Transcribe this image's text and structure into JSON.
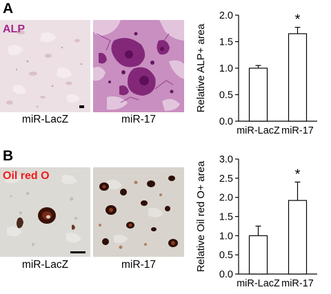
{
  "panels": [
    {
      "letter": "A",
      "stain_label": "ALP",
      "stain_color": "#a3278c",
      "image_captions": [
        "miR-LacZ",
        "miR-17"
      ],
      "chart_data": {
        "type": "bar",
        "categories": [
          "miR-LacZ",
          "miR-17"
        ],
        "values": [
          1.0,
          1.65
        ],
        "errors": [
          0.05,
          0.12
        ],
        "significance": [
          "",
          "*"
        ],
        "title": "",
        "xlabel": "",
        "ylabel": "Relative ALP+ area",
        "ylim": [
          0,
          2.0
        ],
        "yticks": [
          "0.0",
          "0.5",
          "1.0",
          "1.5",
          "2.0"
        ],
        "bar_fill": "#ffffff",
        "bar_stroke": "#000000",
        "grid": false
      }
    },
    {
      "letter": "B",
      "stain_label": "Oil red O",
      "stain_color": "#ee1c1c",
      "image_captions": [
        "miR-LacZ",
        "miR-17"
      ],
      "chart_data": {
        "type": "bar",
        "categories": [
          "miR-LacZ",
          "miR-17"
        ],
        "values": [
          1.0,
          1.92
        ],
        "errors": [
          0.25,
          0.48
        ],
        "significance": [
          "",
          "*"
        ],
        "title": "",
        "xlabel": "",
        "ylabel": "Relative Oil red O+ area",
        "ylim": [
          0,
          3.0
        ],
        "yticks": [
          "0.0",
          "0.5",
          "1.0",
          "1.5",
          "2.0",
          "2.5",
          "3.0"
        ],
        "bar_fill": "#ffffff",
        "bar_stroke": "#000000",
        "grid": false
      }
    }
  ]
}
